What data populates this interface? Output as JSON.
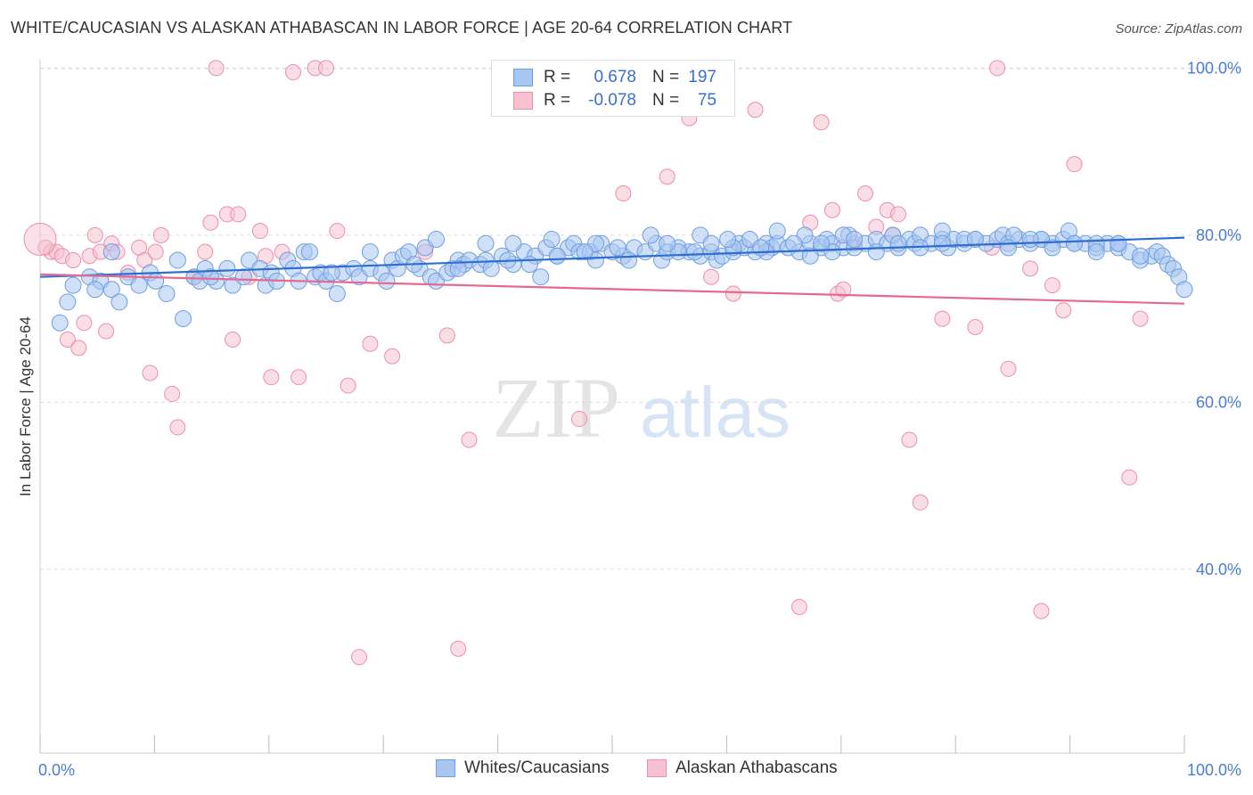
{
  "title": "WHITE/CAUCASIAN VS ALASKAN ATHABASCAN IN LABOR FORCE | AGE 20-64 CORRELATION CHART",
  "source": "Source: ZipAtlas.com",
  "watermark": {
    "zip": "ZIP",
    "atlas": "atlas"
  },
  "legend": {
    "r_label": "R =",
    "n_label": "N =",
    "rows": [
      {
        "r": "0.678",
        "n": "197"
      },
      {
        "r": "-0.078",
        "n": "75"
      }
    ]
  },
  "colors": {
    "blue_fill": "#a9c6f0",
    "blue_stroke": "#6f9ee0",
    "blue_line": "#2d6fd1",
    "pink_fill": "#f6c2d2",
    "pink_stroke": "#ec8fab",
    "pink_line": "#e56a92",
    "tick_text": "#4a7dd4",
    "grid": "#dcdcdc"
  },
  "chart_data": {
    "type": "scatter",
    "title": "WHITE/CAUCASIAN VS ALASKAN ATHABASCAN IN LABOR FORCE | AGE 20-64 CORRELATION CHART",
    "xlabel": "",
    "ylabel": "In Labor Force | Age 20-64",
    "xlim": [
      0,
      100
    ],
    "ylim": [
      18,
      101
    ],
    "x_tick_labels": [
      "0.0%",
      "100.0%"
    ],
    "y_ticks": [
      40,
      60,
      80,
      100
    ],
    "y_tick_labels": [
      "40.0%",
      "60.0%",
      "80.0%",
      "100.0%"
    ],
    "grid": true,
    "legend_position": "top-center",
    "series": [
      {
        "name": "Whites/Caucasians",
        "r": 0.678,
        "n": 197,
        "trend": [
          [
            0,
            75.0
          ],
          [
            100,
            79.7
          ]
        ],
        "points": [
          [
            3,
            74
          ],
          [
            2.5,
            72
          ],
          [
            1.8,
            69.5
          ],
          [
            4.5,
            75
          ],
          [
            5.5,
            74.5
          ],
          [
            6.5,
            78
          ],
          [
            6.5,
            73.5
          ],
          [
            7.2,
            72
          ],
          [
            8,
            75
          ],
          [
            9,
            74
          ],
          [
            10,
            75.5
          ],
          [
            10.5,
            74.5
          ],
          [
            11.5,
            73
          ],
          [
            12.5,
            77
          ],
          [
            13,
            70
          ],
          [
            14,
            75
          ],
          [
            14.5,
            74.5
          ],
          [
            15,
            76
          ],
          [
            16,
            74.5
          ],
          [
            17,
            76
          ],
          [
            17.5,
            74
          ],
          [
            18.5,
            75
          ],
          [
            19,
            77
          ],
          [
            20,
            76
          ],
          [
            20.5,
            74
          ],
          [
            21,
            75.5
          ],
          [
            22.5,
            77
          ],
          [
            23,
            76
          ],
          [
            24,
            78
          ],
          [
            23.5,
            74.5
          ],
          [
            25,
            75
          ],
          [
            25.5,
            75.5
          ],
          [
            26,
            74.5
          ],
          [
            27,
            73
          ],
          [
            27.5,
            75.5
          ],
          [
            28.5,
            76
          ],
          [
            29,
            75
          ],
          [
            30,
            76
          ],
          [
            31,
            75.5
          ],
          [
            32,
            77
          ],
          [
            32.5,
            76
          ],
          [
            33,
            77.5
          ],
          [
            33.5,
            78
          ],
          [
            34.5,
            76
          ],
          [
            35,
            78.5
          ],
          [
            35.5,
            75
          ],
          [
            36,
            74.5
          ],
          [
            37,
            75.5
          ],
          [
            37.5,
            76
          ],
          [
            38,
            77
          ],
          [
            38.5,
            76.5
          ],
          [
            39,
            77
          ],
          [
            40,
            76.5
          ],
          [
            40.5,
            77
          ],
          [
            41,
            76
          ],
          [
            42,
            77.5
          ],
          [
            43,
            76.5
          ],
          [
            44,
            78
          ],
          [
            45,
            77.5
          ],
          [
            45.5,
            75
          ],
          [
            46,
            78.5
          ],
          [
            47,
            77.5
          ],
          [
            48,
            78.5
          ],
          [
            48.5,
            79
          ],
          [
            49,
            78
          ],
          [
            50,
            78
          ],
          [
            50.5,
            77
          ],
          [
            51,
            79
          ],
          [
            52,
            78
          ],
          [
            53,
            77.5
          ],
          [
            54,
            78.5
          ],
          [
            55,
            78
          ],
          [
            56,
            79
          ],
          [
            56.5,
            77
          ],
          [
            57,
            78
          ],
          [
            58,
            78.5
          ],
          [
            59,
            78
          ],
          [
            60,
            77.5
          ],
          [
            61,
            78
          ],
          [
            61.5,
            77
          ],
          [
            62,
            77.5
          ],
          [
            63,
            78
          ],
          [
            63.5,
            79
          ],
          [
            64,
            78.5
          ],
          [
            65,
            78
          ],
          [
            66,
            79
          ],
          [
            66.5,
            78.5
          ],
          [
            67,
            79
          ],
          [
            68,
            78.5
          ],
          [
            69,
            78
          ],
          [
            70,
            79
          ],
          [
            71,
            78.5
          ],
          [
            71.5,
            79.5
          ],
          [
            72,
            79
          ],
          [
            73,
            78.5
          ],
          [
            73.5,
            80
          ],
          [
            74,
            78.5
          ],
          [
            75,
            79
          ],
          [
            76,
            79.5
          ],
          [
            77,
            79
          ],
          [
            78,
            78.5
          ],
          [
            79,
            79.5
          ],
          [
            79.5,
            79
          ],
          [
            80,
            80
          ],
          [
            81,
            79
          ],
          [
            82,
            79.5
          ],
          [
            82.5,
            78.5
          ],
          [
            83,
            79.5
          ],
          [
            84,
            79
          ],
          [
            85,
            79.5
          ],
          [
            86,
            79
          ],
          [
            87,
            79.5
          ],
          [
            87.5,
            80
          ],
          [
            88,
            79
          ],
          [
            89,
            79.5
          ],
          [
            90,
            79
          ],
          [
            91,
            79.5
          ],
          [
            92,
            79
          ],
          [
            93,
            79.5
          ],
          [
            94,
            79
          ],
          [
            95,
            79
          ],
          [
            96,
            78.5
          ],
          [
            97,
            79
          ],
          [
            98,
            78.5
          ],
          [
            99,
            78
          ],
          [
            100,
            77
          ],
          [
            101,
            77.5
          ],
          [
            101.5,
            78
          ],
          [
            102,
            77.5
          ],
          [
            102.5,
            76.5
          ],
          [
            103,
            76
          ],
          [
            103.5,
            75
          ],
          [
            104,
            73.5
          ],
          [
            55.5,
            80
          ],
          [
            60,
            80
          ],
          [
            64.5,
            79.5
          ],
          [
            67,
            80.5
          ],
          [
            69.5,
            80
          ],
          [
            73,
            80
          ],
          [
            77.5,
            80
          ],
          [
            82,
            80.5
          ],
          [
            84,
            79.5
          ],
          [
            88.5,
            80
          ],
          [
            91,
            79.5
          ],
          [
            93.5,
            80.5
          ],
          [
            96,
            79
          ],
          [
            98,
            79
          ],
          [
            50.5,
            79
          ],
          [
            43,
            79
          ],
          [
            36,
            79.5
          ],
          [
            30,
            78
          ],
          [
            24.5,
            78
          ],
          [
            15.5,
            75
          ],
          [
            5,
            73.5
          ],
          [
            40.5,
            79
          ],
          [
            46.5,
            79.5
          ],
          [
            52.5,
            78.5
          ],
          [
            58,
            78
          ],
          [
            61,
            79
          ],
          [
            63,
            78.5
          ],
          [
            66,
            78
          ],
          [
            70,
            77.5
          ],
          [
            72,
            78
          ],
          [
            74,
            79.5
          ],
          [
            76,
            78
          ],
          [
            78,
            79
          ],
          [
            80,
            78.5
          ],
          [
            82,
            79
          ],
          [
            85,
            79.5
          ],
          [
            88,
            78.5
          ],
          [
            90,
            79.5
          ],
          [
            92,
            78.5
          ],
          [
            94,
            79
          ],
          [
            96,
            78
          ],
          [
            98,
            79
          ],
          [
            100,
            77.5
          ],
          [
            21.5,
            74.5
          ],
          [
            26.5,
            75.5
          ],
          [
            31.5,
            74.5
          ],
          [
            34,
            76.5
          ],
          [
            38,
            76
          ],
          [
            42.5,
            77
          ],
          [
            44.5,
            76.5
          ],
          [
            47,
            77.5
          ],
          [
            49.5,
            78
          ],
          [
            53.5,
            77
          ],
          [
            57,
            79
          ],
          [
            59.5,
            78
          ],
          [
            62.5,
            79.5
          ],
          [
            65.5,
            78.5
          ],
          [
            68.5,
            79
          ],
          [
            71,
            79
          ]
        ]
      },
      {
        "name": "Alaskan Athabascans",
        "r": -0.078,
        "n": 75,
        "trend": [
          [
            0,
            75.3
          ],
          [
            100,
            71.8
          ]
        ],
        "points": [
          [
            0.5,
            78.5
          ],
          [
            1,
            78
          ],
          [
            1.5,
            78
          ],
          [
            2,
            77.5
          ],
          [
            2.5,
            67.5
          ],
          [
            3,
            77
          ],
          [
            3.5,
            66.5
          ],
          [
            4,
            69.5
          ],
          [
            4.5,
            77.5
          ],
          [
            5,
            80
          ],
          [
            5.5,
            78
          ],
          [
            6,
            68.5
          ],
          [
            6.5,
            79
          ],
          [
            7,
            78
          ],
          [
            8,
            75.5
          ],
          [
            9,
            78.5
          ],
          [
            9.5,
            77
          ],
          [
            10,
            63.5
          ],
          [
            10.5,
            78
          ],
          [
            11,
            80
          ],
          [
            12,
            61
          ],
          [
            12.5,
            57
          ],
          [
            14,
            75
          ],
          [
            15,
            78
          ],
          [
            15.5,
            81.5
          ],
          [
            16,
            100
          ],
          [
            17,
            82.5
          ],
          [
            17.5,
            67.5
          ],
          [
            18,
            82.5
          ],
          [
            19,
            75
          ],
          [
            20,
            80.5
          ],
          [
            20.5,
            77.5
          ],
          [
            21,
            63
          ],
          [
            22,
            78
          ],
          [
            23,
            99.5
          ],
          [
            23.5,
            63
          ],
          [
            25,
            100
          ],
          [
            26,
            100
          ],
          [
            27,
            80.5
          ],
          [
            28,
            62
          ],
          [
            29,
            29.5
          ],
          [
            30,
            67
          ],
          [
            32,
            65.5
          ],
          [
            35,
            78
          ],
          [
            37,
            68
          ],
          [
            38,
            30.5
          ],
          [
            39,
            55.5
          ],
          [
            49,
            58
          ],
          [
            53,
            85
          ],
          [
            57,
            87
          ],
          [
            59,
            94
          ],
          [
            61,
            75
          ],
          [
            63,
            73
          ],
          [
            65,
            95
          ],
          [
            69,
            35.5
          ],
          [
            70,
            81.5
          ],
          [
            71,
            93.5
          ],
          [
            72,
            83
          ],
          [
            72.5,
            73
          ],
          [
            73,
            73.5
          ],
          [
            74,
            79
          ],
          [
            75,
            85
          ],
          [
            76,
            81
          ],
          [
            77,
            83
          ],
          [
            77.5,
            80
          ],
          [
            78,
            82.5
          ],
          [
            79,
            55.5
          ],
          [
            80,
            48
          ],
          [
            82,
            70
          ],
          [
            85,
            69
          ],
          [
            86.5,
            78.5
          ],
          [
            87,
            100
          ],
          [
            88,
            64
          ],
          [
            90,
            76
          ],
          [
            91,
            35
          ],
          [
            92,
            74
          ],
          [
            93,
            71
          ],
          [
            94,
            88.5
          ],
          [
            99,
            51
          ],
          [
            100,
            70
          ]
        ]
      }
    ]
  },
  "bottom_legend": [
    {
      "label": "Whites/Caucasians"
    },
    {
      "label": "Alaskan Athabascans"
    }
  ]
}
